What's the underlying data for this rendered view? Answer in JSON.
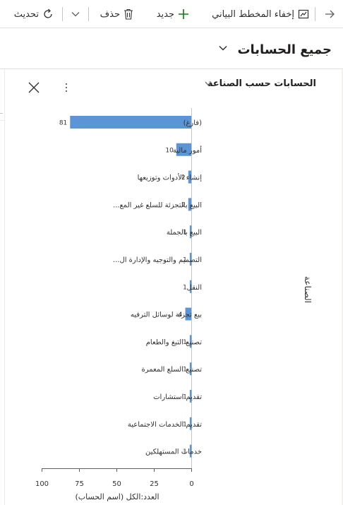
{
  "toolbar": {
    "back_icon": "arrow-icon",
    "hide_chart_label": "إخفاء المخطط البياني",
    "new_label": "جديد",
    "delete_label": "حذف",
    "refresh_label": "تحديث"
  },
  "view": {
    "title": "جميع الحسابات"
  },
  "chart_panel": {
    "title": "الحسابات حسب الصناعة"
  },
  "colors": {
    "bar": "#5b95d6",
    "accent": "#107c10",
    "axis": "#605e5c"
  },
  "chart_data": {
    "type": "bar",
    "orientation": "horizontal",
    "categories": [
      "(فارغ)",
      "أمور مالية",
      "إنشاء الأدوات وتوزيعها",
      "البيع بالتجزئة للسلع غير المع...",
      "البيع بالجملة",
      "التصميم والتوجيه والإدارة ال...",
      "النقل",
      "بيع تجزئة لوسائل الترفيه",
      "تصنيع التبغ والطعام",
      "تصنيع السلع المعمرة",
      "تقديم استشارات",
      "تقديم الخدمات الاجتماعية",
      "خدمات المستهلكين"
    ],
    "values": [
      81,
      10,
      2,
      2,
      1,
      1,
      1,
      4,
      1,
      1,
      1,
      1,
      1
    ],
    "data_labels": [
      "81",
      "10",
      "2",
      "2",
      "1",
      "1",
      "1",
      "4",
      "1",
      "1",
      "1",
      "1",
      "1"
    ],
    "xlabel": "العدد:الكل (اسم الحساب)",
    "ylabel": "الصناعة",
    "xlim": [
      0,
      100
    ],
    "xticks": [
      0,
      25,
      50,
      75,
      100
    ],
    "xtick_labels": [
      "0",
      "25",
      "50",
      "75",
      "100"
    ],
    "x_reversed": true,
    "grid": false
  }
}
